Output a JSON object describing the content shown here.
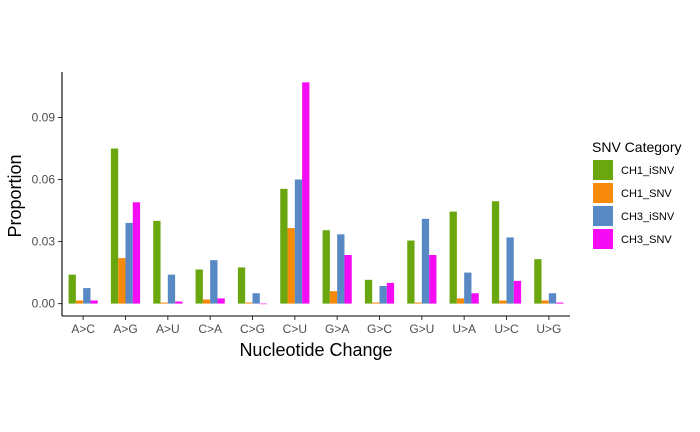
{
  "chart_data": {
    "type": "bar",
    "xlabel": "Nucleotide Change",
    "ylabel": "Proportion",
    "ylim": [
      -0.006,
      0.112
    ],
    "yticks": [
      0.0,
      0.03,
      0.06,
      0.09
    ],
    "ytick_labels": [
      "0.00",
      "0.03",
      "0.06",
      "0.09"
    ],
    "grid": false,
    "legend": {
      "title": "SNV Category",
      "position": "right"
    },
    "categories": [
      "A>C",
      "A>G",
      "A>U",
      "C>A",
      "C>G",
      "C>U",
      "G>A",
      "G>C",
      "G>U",
      "U>A",
      "U>C",
      "U>G"
    ],
    "series": [
      {
        "name": "CH1_iSNV",
        "color": "#6aa70f",
        "values": [
          0.014,
          0.075,
          0.04,
          0.0165,
          0.0175,
          0.0555,
          0.0355,
          0.0115,
          0.0305,
          0.0445,
          0.0495,
          0.0215
        ]
      },
      {
        "name": "CH1_SNV",
        "color": "#f78a0a",
        "values": [
          0.0015,
          0.022,
          0.0005,
          0.002,
          0.0005,
          0.0365,
          0.006,
          0.0005,
          0.0005,
          0.0025,
          0.0015,
          0.0015
        ]
      },
      {
        "name": "CH3_iSNV",
        "color": "#5889c4",
        "values": [
          0.0075,
          0.039,
          0.014,
          0.021,
          0.005,
          0.06,
          0.0335,
          0.0085,
          0.041,
          0.015,
          0.032,
          0.005
        ]
      },
      {
        "name": "CH3_SNV",
        "color": "#f50cf5",
        "values": [
          0.0015,
          0.049,
          0.001,
          0.0025,
          0.0,
          0.107,
          0.0235,
          0.01,
          0.0235,
          0.005,
          0.011,
          0.0005
        ]
      }
    ]
  }
}
